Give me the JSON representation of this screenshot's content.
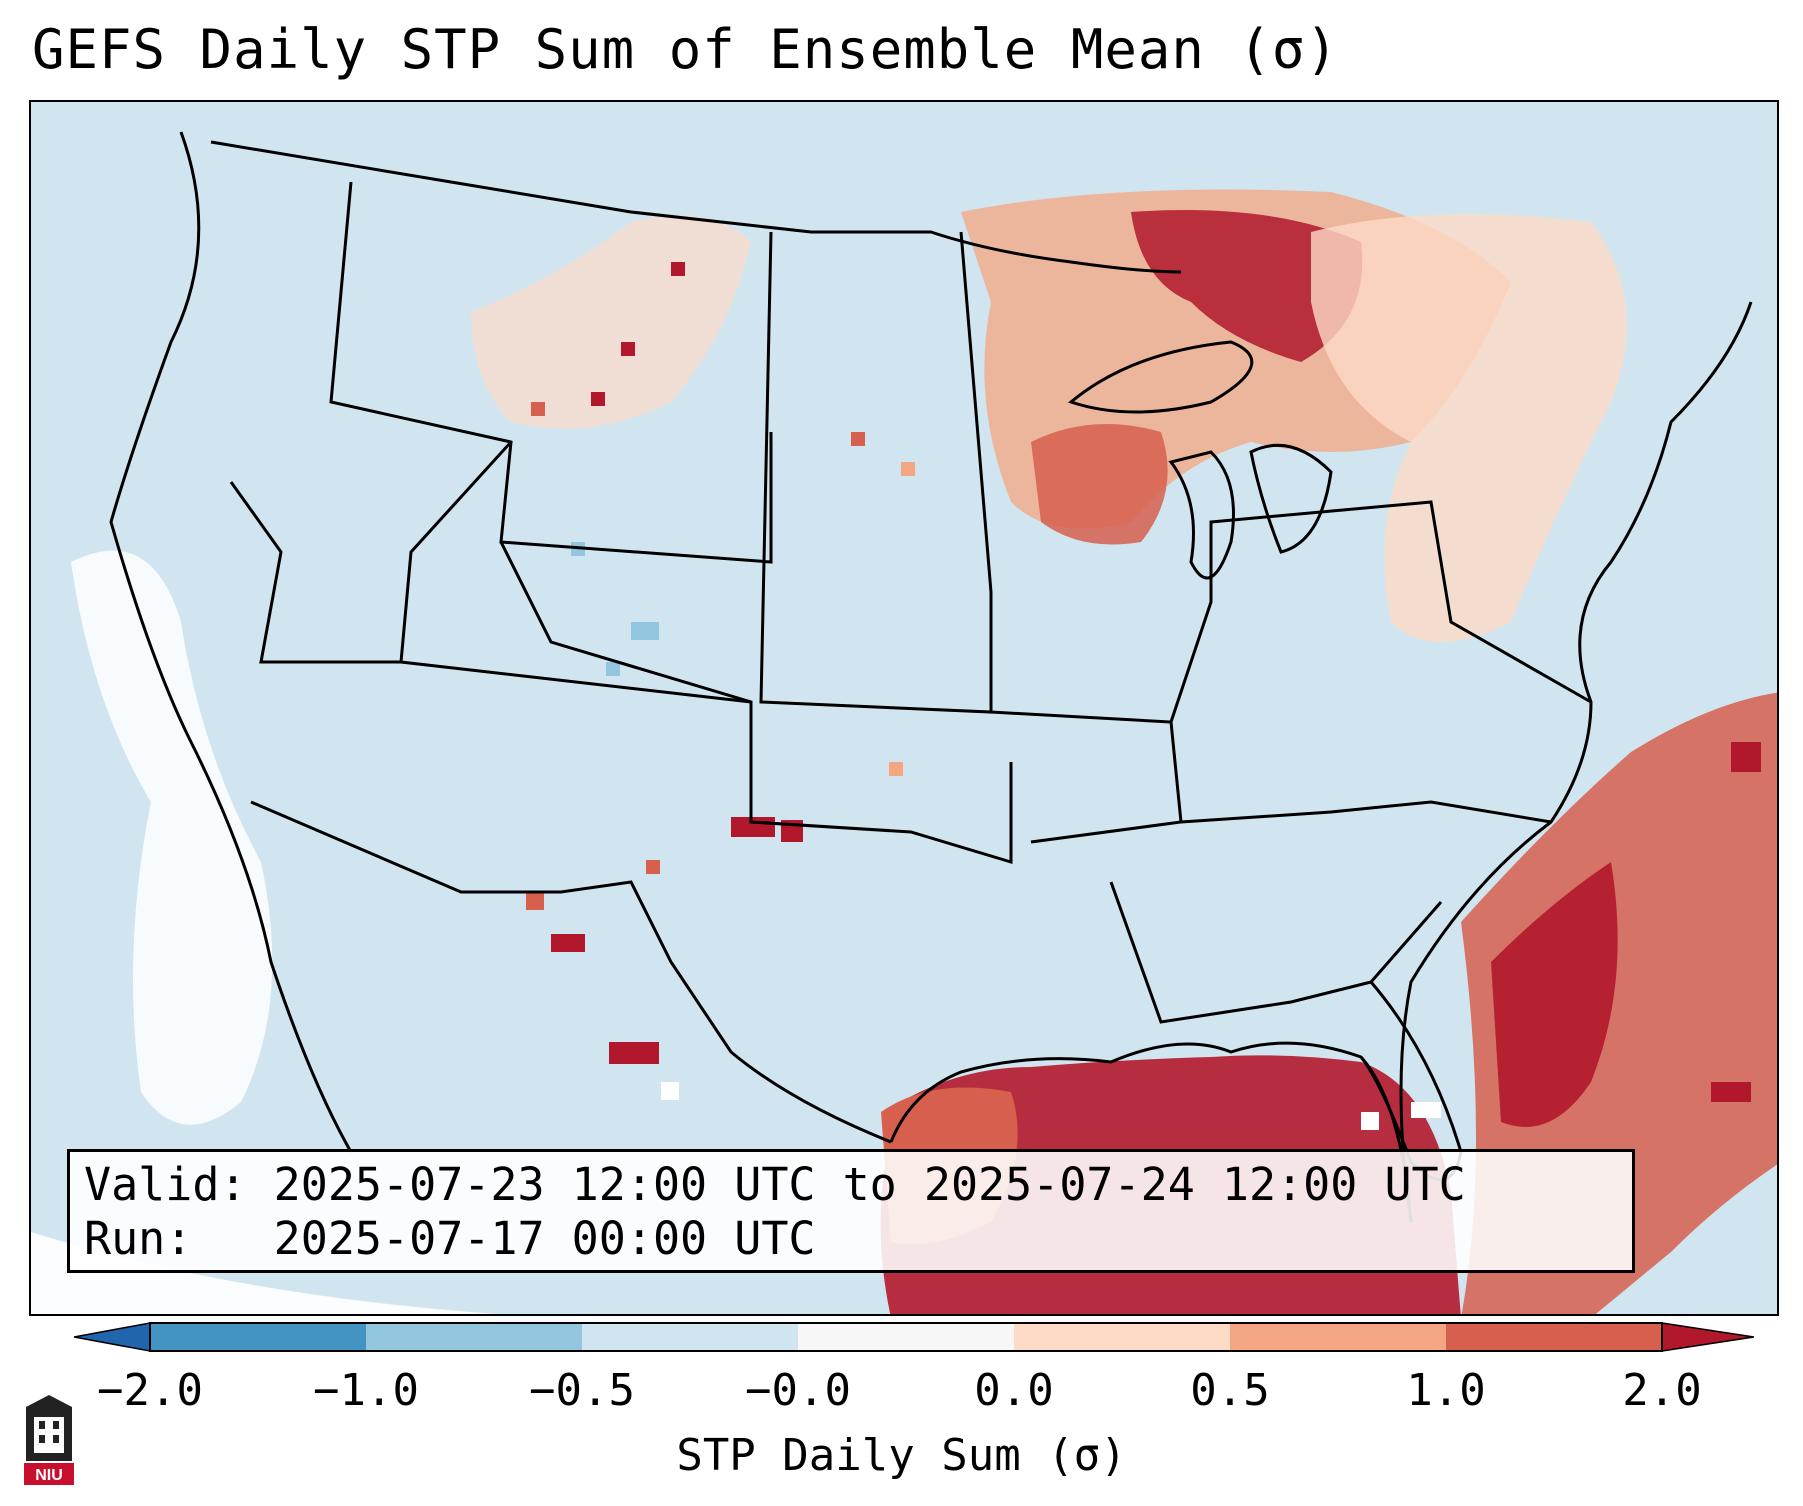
{
  "title": "GEFS Daily STP Sum of Ensemble Mean (σ)",
  "info": {
    "valid_label": "Valid:",
    "valid_value": "2025-07-23 12:00 UTC to 2025-07-24 12:00 UTC",
    "run_label": "Run:",
    "run_value": "2025-07-17 00:00 UTC"
  },
  "colorbar": {
    "label": "STP Daily Sum (σ)",
    "ticks": [
      "−2.0",
      "−1.0",
      "−0.5",
      "−0.0",
      "0.0",
      "0.5",
      "1.0",
      "2.0"
    ],
    "colors": [
      "#4393c3",
      "#92c5de",
      "#d1e5f0",
      "#f7f7f7",
      "#fddbc7",
      "#f4a582",
      "#d6604d"
    ],
    "under_color": "#2166ac",
    "over_color": "#b2182b"
  },
  "map_colors": {
    "ocean": "#d1e5f0",
    "land": "#d1e5f0",
    "borders": "#000000",
    "high": "#b2182b",
    "mid": "#d6604d",
    "low": "#f4a582",
    "faint": "#fddbc7",
    "neutral": "#f7f7f7"
  },
  "logo": {
    "text": "NIU",
    "color": "#c8102e"
  }
}
